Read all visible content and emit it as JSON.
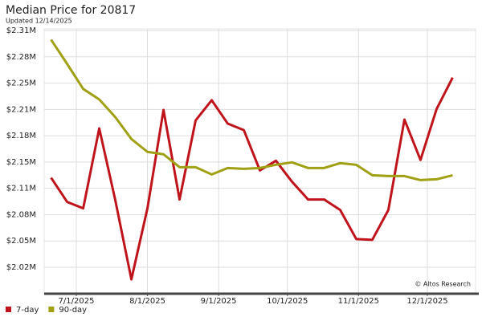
{
  "chart_data": {
    "type": "line",
    "title": "Median Price for 20817",
    "subtitle": "Updated 12/14/2025",
    "annotation": "© Altos Research",
    "x": [
      "2025-06-20",
      "2025-06-27",
      "2025-07-04",
      "2025-07-11",
      "2025-07-18",
      "2025-07-25",
      "2025-08-01",
      "2025-08-08",
      "2025-08-15",
      "2025-08-22",
      "2025-08-29",
      "2025-09-05",
      "2025-09-12",
      "2025-09-19",
      "2025-09-26",
      "2025-10-03",
      "2025-10-10",
      "2025-10-17",
      "2025-10-24",
      "2025-10-31",
      "2025-11-07",
      "2025-11-14",
      "2025-11-21",
      "2025-11-28",
      "2025-12-05",
      "2025-12-12"
    ],
    "series": [
      {
        "name": "7-day",
        "color": "#c0141c",
        "values": [
          2128000,
          2098000,
          2090000,
          2189000,
          2100000,
          2002000,
          2090000,
          2212000,
          2101000,
          2199000,
          2224000,
          2195000,
          2187000,
          2137000,
          2149000,
          2123000,
          2101000,
          2101000,
          2088000,
          2052000,
          2051000,
          2088000,
          2200000,
          2150000,
          2213000,
          2252000
        ]
      },
      {
        "name": "90-day",
        "color": "#a0a014",
        "values": [
          2299000,
          2269000,
          2238000,
          2225000,
          2203000,
          2176000,
          2160000,
          2157000,
          2141000,
          2141000,
          2132000,
          2140000,
          2139000,
          2140000,
          2144000,
          2147000,
          2140000,
          2140000,
          2146000,
          2144000,
          2131000,
          2130000,
          2130000,
          2125000,
          2126000,
          2131000
        ]
      }
    ],
    "xlim": [
      "2025-06-17",
      "2025-12-22"
    ],
    "xticks": [
      {
        "value": "2025-07-01",
        "label": "7/1/2025"
      },
      {
        "value": "2025-08-01",
        "label": "8/1/2025"
      },
      {
        "value": "2025-09-01",
        "label": "9/1/2025"
      },
      {
        "value": "2025-10-01",
        "label": "10/1/2025"
      },
      {
        "value": "2025-11-01",
        "label": "11/1/2025"
      },
      {
        "value": "2025-12-01",
        "label": "12/1/2025"
      }
    ],
    "ylim": [
      1985200,
      2312400
    ],
    "yticks": [
      {
        "value": 2017000,
        "label": "$2.02M"
      },
      {
        "value": 2049600,
        "label": "$2.05M"
      },
      {
        "value": 2082200,
        "label": "$2.08M"
      },
      {
        "value": 2114800,
        "label": "$2.11M"
      },
      {
        "value": 2147400,
        "label": "$2.15M"
      },
      {
        "value": 2180000,
        "label": "$2.18M"
      },
      {
        "value": 2212600,
        "label": "$2.21M"
      },
      {
        "value": 2245200,
        "label": "$2.25M"
      },
      {
        "value": 2277800,
        "label": "$2.28M"
      },
      {
        "value": 2310400,
        "label": "$2.31M"
      }
    ],
    "grid": true
  }
}
